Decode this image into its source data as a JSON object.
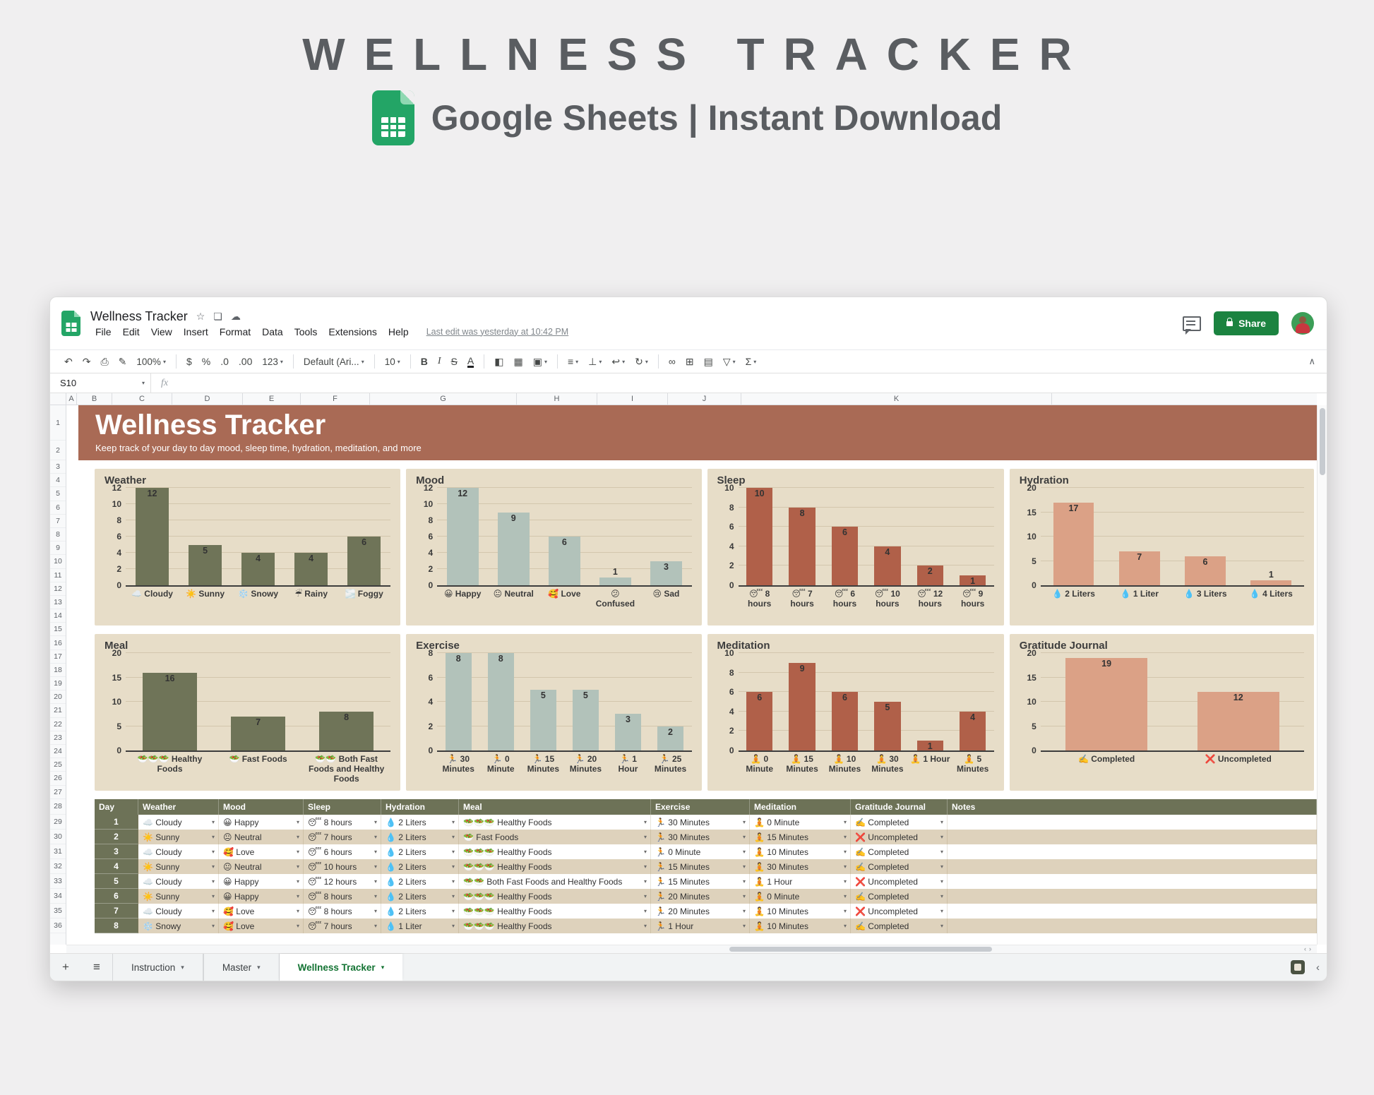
{
  "promo": {
    "title": "WELLNESS TRACKER",
    "subtitle": "Google Sheets | Instant Download"
  },
  "window": {
    "titlebar": {
      "doc_title": "Wellness Tracker",
      "star_icon": "☆",
      "move_folder_icon": "❏",
      "cloud_status_icon": "☁",
      "menus": [
        "File",
        "Edit",
        "View",
        "Insert",
        "Format",
        "Data",
        "Tools",
        "Extensions",
        "Help"
      ],
      "last_edit": "Last edit was yesterday at 10:42 PM",
      "share_label": "Share"
    },
    "toolbar": {
      "items": [
        {
          "name": "undo",
          "glyph": "↶"
        },
        {
          "name": "redo",
          "glyph": "↷"
        },
        {
          "name": "print",
          "glyph": "⎙"
        },
        {
          "name": "paint-format",
          "glyph": "✎"
        },
        {
          "name": "zoom",
          "label": "100%",
          "dropdown": true
        },
        {
          "name": "format-currency",
          "glyph": "$"
        },
        {
          "name": "format-percent",
          "glyph": "%"
        },
        {
          "name": "decrease-decimals",
          "glyph": ".0"
        },
        {
          "name": "increase-decimals",
          "glyph": ".00"
        },
        {
          "name": "more-formats",
          "label": "123",
          "dropdown": true
        },
        {
          "name": "font",
          "label": "Default (Ari...",
          "dropdown": true
        },
        {
          "name": "font-size",
          "label": "10",
          "dropdown": true
        },
        {
          "name": "bold",
          "glyph": "B"
        },
        {
          "name": "italic",
          "glyph": "I"
        },
        {
          "name": "strikethrough",
          "glyph": "S"
        },
        {
          "name": "text-color",
          "glyph": "A"
        },
        {
          "name": "fill-color",
          "glyph": "◧"
        },
        {
          "name": "borders",
          "glyph": "▦"
        },
        {
          "name": "merge-cells",
          "glyph": "▣",
          "dropdown": true
        },
        {
          "name": "horizontal-align",
          "glyph": "≡",
          "dropdown": true
        },
        {
          "name": "vertical-align",
          "glyph": "⊥",
          "dropdown": true
        },
        {
          "name": "text-wrap",
          "glyph": "↩",
          "dropdown": true
        },
        {
          "name": "text-rotation",
          "glyph": "↻",
          "dropdown": true
        },
        {
          "name": "insert-link",
          "glyph": "∞"
        },
        {
          "name": "insert-comment",
          "glyph": "⊞"
        },
        {
          "name": "insert-chart",
          "glyph": "▤"
        },
        {
          "name": "create-filter",
          "glyph": "▽",
          "dropdown": true
        },
        {
          "name": "functions",
          "glyph": "Σ",
          "dropdown": true
        }
      ],
      "separators_after": [
        4,
        9,
        10,
        11,
        15,
        18,
        22
      ],
      "collapse_glyph": "∧"
    },
    "formula_bar": {
      "name_box": "S10",
      "fx_label": "fx"
    },
    "grid": {
      "column_letters": [
        "A",
        "B",
        "C",
        "D",
        "E",
        "F",
        "G",
        "H",
        "I",
        "J",
        "K"
      ],
      "first_row": 1,
      "last_row": 36
    }
  },
  "banner": {
    "title": "Wellness Tracker",
    "subtitle": "Keep track of your day to day mood, sleep time, hydration, meditation, and more"
  },
  "chart_data": [
    {
      "type": "bar",
      "title": "Weather",
      "bar_color_key": "olive",
      "ylim": [
        0,
        12
      ],
      "ytick_step": 2,
      "grid": true,
      "categories": [
        {
          "icon": "☁️",
          "label": "Cloudy"
        },
        {
          "icon": "☀️",
          "label": "Sunny"
        },
        {
          "icon": "❄️",
          "label": "Snowy"
        },
        {
          "icon": "☔",
          "label": "Rainy"
        },
        {
          "icon": "🌫️",
          "label": "Foggy"
        }
      ],
      "values": [
        12,
        5,
        4,
        4,
        6
      ]
    },
    {
      "type": "bar",
      "title": "Mood",
      "bar_color_key": "sage",
      "ylim": [
        0,
        12
      ],
      "ytick_step": 2,
      "grid": true,
      "categories": [
        {
          "icon": "😀",
          "label": "Happy"
        },
        {
          "icon": "😐",
          "label": "Neutral"
        },
        {
          "icon": "🥰",
          "label": "Love"
        },
        {
          "icon": "😕",
          "label": "Confused"
        },
        {
          "icon": "😢",
          "label": "Sad"
        }
      ],
      "values": [
        12,
        9,
        6,
        1,
        3
      ]
    },
    {
      "type": "bar",
      "title": "Sleep",
      "bar_color_key": "terracotta",
      "ylim": [
        0,
        10
      ],
      "ytick_step": 2,
      "grid": true,
      "categories": [
        {
          "icon": "😴",
          "label": "8 hours"
        },
        {
          "icon": "😴",
          "label": "7 hours"
        },
        {
          "icon": "😴",
          "label": "6 hours"
        },
        {
          "icon": "😴",
          "label": "10 hours"
        },
        {
          "icon": "😴",
          "label": "12 hours"
        },
        {
          "icon": "😴",
          "label": "9 hours"
        }
      ],
      "values": [
        10,
        8,
        6,
        4,
        2,
        1
      ]
    },
    {
      "type": "bar",
      "title": "Hydration",
      "bar_color_key": "salmon",
      "ylim": [
        0,
        20
      ],
      "ytick_step": 5,
      "grid": true,
      "categories": [
        {
          "icon": "💧",
          "label": "2 Liters"
        },
        {
          "icon": "💧",
          "label": "1 Liter"
        },
        {
          "icon": "💧",
          "label": "3 Liters"
        },
        {
          "icon": "💧",
          "label": "4 Liters"
        }
      ],
      "values": [
        17,
        7,
        6,
        1
      ]
    },
    {
      "type": "bar",
      "title": "Meal",
      "bar_color_key": "olive",
      "ylim": [
        0,
        20
      ],
      "ytick_step": 5,
      "grid": true,
      "categories": [
        {
          "icon": "🥗🥗🥗",
          "label": "Healthy Foods"
        },
        {
          "icon": "🥗",
          "label": "Fast Foods"
        },
        {
          "icon": "🥗🥗",
          "label": "Both Fast Foods and Healthy Foods"
        }
      ],
      "values": [
        16,
        7,
        8
      ]
    },
    {
      "type": "bar",
      "title": "Exercise",
      "bar_color_key": "sage",
      "ylim": [
        0,
        8
      ],
      "ytick_step": 2,
      "grid": true,
      "categories": [
        {
          "icon": "🏃",
          "label": "30 Minutes"
        },
        {
          "icon": "🏃",
          "label": "0 Minute"
        },
        {
          "icon": "🏃",
          "label": "15 Minutes"
        },
        {
          "icon": "🏃",
          "label": "20 Minutes"
        },
        {
          "icon": "🏃",
          "label": "1 Hour"
        },
        {
          "icon": "🏃",
          "label": "25 Minutes"
        }
      ],
      "values": [
        8,
        8,
        5,
        5,
        3,
        2
      ]
    },
    {
      "type": "bar",
      "title": "Meditation",
      "bar_color_key": "terracotta",
      "ylim": [
        0,
        10
      ],
      "ytick_step": 2,
      "grid": true,
      "categories": [
        {
          "icon": "🧘",
          "label": "0 Minute"
        },
        {
          "icon": "🧘",
          "label": "15 Minutes"
        },
        {
          "icon": "🧘",
          "label": "10 Minutes"
        },
        {
          "icon": "🧘",
          "label": "30 Minutes"
        },
        {
          "icon": "🧘",
          "label": "1 Hour"
        },
        {
          "icon": "🧘",
          "label": "5 Minutes"
        }
      ],
      "values": [
        6,
        9,
        6,
        5,
        1,
        4
      ]
    },
    {
      "type": "bar",
      "title": "Gratitude Journal",
      "bar_color_key": "salmon",
      "ylim": [
        0,
        20
      ],
      "ytick_step": 5,
      "grid": true,
      "categories": [
        {
          "icon": "✍️",
          "label": "Completed"
        },
        {
          "icon": "❌",
          "label": "Uncompleted"
        }
      ],
      "values": [
        19,
        12
      ]
    }
  ],
  "table": {
    "headers": [
      "Day",
      "Weather",
      "Mood",
      "Sleep",
      "Hydration",
      "Meal",
      "Exercise",
      "Meditation",
      "Gratitude Journal",
      "Notes"
    ],
    "rows": [
      {
        "day": "1",
        "cells": [
          [
            "☁️",
            "Cloudy"
          ],
          [
            "😀",
            "Happy"
          ],
          [
            "😴",
            "8 hours"
          ],
          [
            "💧",
            "2 Liters"
          ],
          [
            "🥗🥗🥗",
            "Healthy Foods"
          ],
          [
            "🏃",
            "30 Minutes"
          ],
          [
            "🧘",
            "0 Minute"
          ],
          [
            "✍️",
            "Completed"
          ]
        ],
        "notes": ""
      },
      {
        "day": "2",
        "cells": [
          [
            "☀️",
            "Sunny"
          ],
          [
            "😐",
            "Neutral"
          ],
          [
            "😴",
            "7 hours"
          ],
          [
            "💧",
            "2 Liters"
          ],
          [
            "🥗",
            "Fast Foods"
          ],
          [
            "🏃",
            "30 Minutes"
          ],
          [
            "🧘",
            "15 Minutes"
          ],
          [
            "❌",
            "Uncompleted"
          ]
        ],
        "notes": ""
      },
      {
        "day": "3",
        "cells": [
          [
            "☁️",
            "Cloudy"
          ],
          [
            "🥰",
            "Love"
          ],
          [
            "😴",
            "6 hours"
          ],
          [
            "💧",
            "2 Liters"
          ],
          [
            "🥗🥗🥗",
            "Healthy Foods"
          ],
          [
            "🏃",
            "0 Minute"
          ],
          [
            "🧘",
            "10 Minutes"
          ],
          [
            "✍️",
            "Completed"
          ]
        ],
        "notes": ""
      },
      {
        "day": "4",
        "cells": [
          [
            "☀️",
            "Sunny"
          ],
          [
            "😐",
            "Neutral"
          ],
          [
            "😴",
            "10 hours"
          ],
          [
            "💧",
            "2 Liters"
          ],
          [
            "🥗🥗🥗",
            "Healthy Foods"
          ],
          [
            "🏃",
            "15 Minutes"
          ],
          [
            "🧘",
            "30 Minutes"
          ],
          [
            "✍️",
            "Completed"
          ]
        ],
        "notes": ""
      },
      {
        "day": "5",
        "cells": [
          [
            "☁️",
            "Cloudy"
          ],
          [
            "😀",
            "Happy"
          ],
          [
            "😴",
            "12 hours"
          ],
          [
            "💧",
            "2 Liters"
          ],
          [
            "🥗🥗",
            "Both Fast Foods and Healthy Foods"
          ],
          [
            "🏃",
            "15 Minutes"
          ],
          [
            "🧘",
            "1 Hour"
          ],
          [
            "❌",
            "Uncompleted"
          ]
        ],
        "notes": ""
      },
      {
        "day": "6",
        "cells": [
          [
            "☀️",
            "Sunny"
          ],
          [
            "😀",
            "Happy"
          ],
          [
            "😴",
            "8 hours"
          ],
          [
            "💧",
            "2 Liters"
          ],
          [
            "🥗🥗🥗",
            "Healthy Foods"
          ],
          [
            "🏃",
            "20 Minutes"
          ],
          [
            "🧘",
            "0 Minute"
          ],
          [
            "✍️",
            "Completed"
          ]
        ],
        "notes": ""
      },
      {
        "day": "7",
        "cells": [
          [
            "☁️",
            "Cloudy"
          ],
          [
            "🥰",
            "Love"
          ],
          [
            "😴",
            "8 hours"
          ],
          [
            "💧",
            "2 Liters"
          ],
          [
            "🥗🥗🥗",
            "Healthy Foods"
          ],
          [
            "🏃",
            "20 Minutes"
          ],
          [
            "🧘",
            "10 Minutes"
          ],
          [
            "❌",
            "Uncompleted"
          ]
        ],
        "notes": ""
      },
      {
        "day": "8",
        "cells": [
          [
            "❄️",
            "Snowy"
          ],
          [
            "🥰",
            "Love"
          ],
          [
            "😴",
            "7 hours"
          ],
          [
            "💧",
            "1 Liter"
          ],
          [
            "🥗🥗🥗",
            "Healthy Foods"
          ],
          [
            "🏃",
            "1 Hour"
          ],
          [
            "🧘",
            "10 Minutes"
          ],
          [
            "✍️",
            "Completed"
          ]
        ],
        "notes": ""
      }
    ]
  },
  "tabbar": {
    "add_glyph": "+",
    "all_sheets_glyph": "≡",
    "tabs": [
      {
        "label": "Instruction",
        "active": false
      },
      {
        "label": "Master",
        "active": false
      },
      {
        "label": "Wellness Tracker",
        "active": true
      }
    ]
  },
  "colors": {
    "banner": "#A96A55",
    "chart_card_bg": "#E7DDC8",
    "bar_palette": {
      "olive": "#6F7458",
      "sage": "#B2C2BA",
      "terracotta": "#B06049",
      "salmon": "#DBA186"
    },
    "table_header": "#6D7257",
    "table_alt_row": "#DED2BC",
    "share_button": "#1B8340",
    "sheets_green": "#23A566",
    "active_tab_text": "#137333"
  }
}
